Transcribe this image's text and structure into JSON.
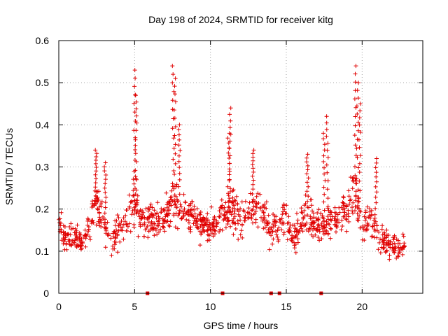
{
  "chart_data": {
    "type": "scatter",
    "title": "Day 198 of 2024, SRMTID for receiver kitg",
    "xlabel": "GPS time / hours",
    "ylabel": "SRMTID / TECUs",
    "xlim": [
      0,
      24
    ],
    "ylim": [
      0,
      0.6
    ],
    "xticks": [
      0,
      5,
      10,
      15,
      20
    ],
    "yticks": [
      0,
      0.1,
      0.2,
      0.3,
      0.4,
      0.5,
      0.6
    ],
    "xtick_labels": [
      "0",
      "5",
      "10",
      "15",
      "20"
    ],
    "ytick_labels": [
      "0",
      "0.1",
      "0.2",
      "0.3",
      "0.4",
      "0.5",
      "0.6"
    ],
    "grid": true,
    "marker": "+",
    "series_color": "#e00000",
    "baseline_points": [
      {
        "x": 5.85,
        "y": 0
      },
      {
        "x": 10.8,
        "y": 0
      },
      {
        "x": 14.0,
        "y": 0
      },
      {
        "x": 14.55,
        "y": 0
      },
      {
        "x": 17.3,
        "y": 0
      }
    ],
    "envelope_profile": {
      "description": "approximate distribution of the dense point cloud: [hour, median, spread]",
      "points": [
        [
          0.0,
          0.16,
          0.04
        ],
        [
          0.5,
          0.13,
          0.04
        ],
        [
          1.0,
          0.13,
          0.04
        ],
        [
          1.5,
          0.12,
          0.04
        ],
        [
          2.0,
          0.15,
          0.05
        ],
        [
          2.5,
          0.22,
          0.06
        ],
        [
          3.0,
          0.16,
          0.06
        ],
        [
          3.5,
          0.12,
          0.05
        ],
        [
          4.0,
          0.15,
          0.05
        ],
        [
          4.5,
          0.17,
          0.05
        ],
        [
          5.0,
          0.22,
          0.09
        ],
        [
          5.5,
          0.17,
          0.05
        ],
        [
          6.0,
          0.17,
          0.05
        ],
        [
          6.5,
          0.17,
          0.05
        ],
        [
          7.0,
          0.18,
          0.05
        ],
        [
          7.5,
          0.22,
          0.09
        ],
        [
          8.0,
          0.21,
          0.06
        ],
        [
          8.5,
          0.19,
          0.05
        ],
        [
          9.0,
          0.18,
          0.05
        ],
        [
          9.5,
          0.16,
          0.05
        ],
        [
          10.0,
          0.15,
          0.05
        ],
        [
          10.5,
          0.17,
          0.05
        ],
        [
          11.0,
          0.2,
          0.06
        ],
        [
          11.5,
          0.19,
          0.07
        ],
        [
          12.0,
          0.17,
          0.05
        ],
        [
          12.5,
          0.2,
          0.05
        ],
        [
          13.0,
          0.21,
          0.06
        ],
        [
          13.5,
          0.19,
          0.06
        ],
        [
          14.0,
          0.14,
          0.05
        ],
        [
          14.5,
          0.16,
          0.05
        ],
        [
          15.0,
          0.18,
          0.05
        ],
        [
          15.5,
          0.12,
          0.05
        ],
        [
          16.0,
          0.17,
          0.06
        ],
        [
          16.5,
          0.19,
          0.06
        ],
        [
          17.0,
          0.16,
          0.05
        ],
        [
          17.5,
          0.17,
          0.06
        ],
        [
          18.0,
          0.17,
          0.05
        ],
        [
          18.5,
          0.18,
          0.05
        ],
        [
          19.0,
          0.18,
          0.06
        ],
        [
          19.5,
          0.24,
          0.09
        ],
        [
          20.0,
          0.16,
          0.05
        ],
        [
          20.5,
          0.18,
          0.06
        ],
        [
          21.0,
          0.14,
          0.05
        ],
        [
          21.5,
          0.12,
          0.04
        ],
        [
          22.0,
          0.11,
          0.04
        ],
        [
          22.5,
          0.11,
          0.04
        ],
        [
          22.8,
          0.11,
          0.03
        ]
      ]
    },
    "spikes": [
      {
        "x": 2.45,
        "ymax": 0.34
      },
      {
        "x": 3.05,
        "ymax": 0.31
      },
      {
        "x": 5.0,
        "ymax": 0.53
      },
      {
        "x": 5.08,
        "ymax": 0.47
      },
      {
        "x": 7.55,
        "ymax": 0.54
      },
      {
        "x": 7.65,
        "ymax": 0.51
      },
      {
        "x": 7.95,
        "ymax": 0.4
      },
      {
        "x": 11.3,
        "ymax": 0.44
      },
      {
        "x": 11.2,
        "ymax": 0.38
      },
      {
        "x": 12.8,
        "ymax": 0.34
      },
      {
        "x": 17.7,
        "ymax": 0.42
      },
      {
        "x": 17.5,
        "ymax": 0.38
      },
      {
        "x": 19.55,
        "ymax": 0.54
      },
      {
        "x": 19.7,
        "ymax": 0.5
      },
      {
        "x": 19.85,
        "ymax": 0.45
      },
      {
        "x": 20.9,
        "ymax": 0.32
      },
      {
        "x": 16.4,
        "ymax": 0.33
      }
    ],
    "point_count": 1100,
    "random_seed": 198
  }
}
